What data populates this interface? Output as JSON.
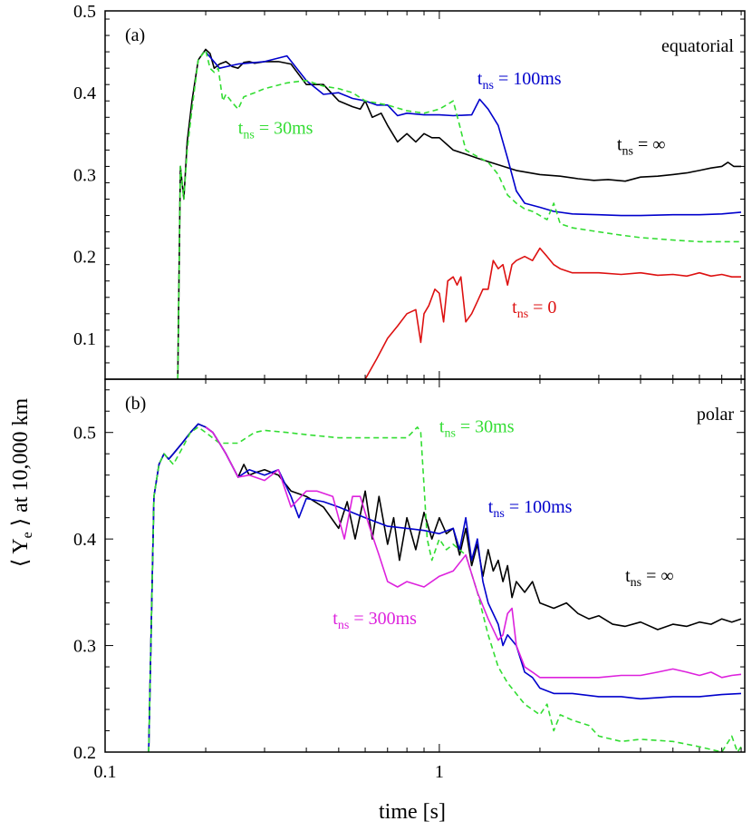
{
  "figure": {
    "ylabel_prefix": "⟨ Y",
    "ylabel_sub": "e",
    "ylabel_suffix": " ⟩  at 10,000 km",
    "xlabel": "time [s]"
  },
  "chart_data": [
    {
      "type": "line",
      "panel_label": "(a)",
      "region_label": "equatorial",
      "xscale": "log",
      "xlim": [
        0.1,
        8.2
      ],
      "ylim": [
        0.05,
        0.5
      ],
      "xticks": [
        {
          "v": 0.1,
          "label": "0.1"
        },
        {
          "v": 1,
          "label": "1"
        }
      ],
      "yticks": [
        {
          "v": 0.1,
          "label": "0.1"
        },
        {
          "v": 0.2,
          "label": "0.2"
        },
        {
          "v": 0.3,
          "label": "0.3"
        },
        {
          "v": 0.4,
          "label": "0.4"
        },
        {
          "v": 0.5,
          "label": "0.5"
        }
      ],
      "series": [
        {
          "id": "a-inf",
          "color": "#000000",
          "dash": "",
          "x": [
            0.165,
            0.168,
            0.172,
            0.176,
            0.182,
            0.19,
            0.2,
            0.206,
            0.212,
            0.22,
            0.23,
            0.24,
            0.25,
            0.26,
            0.27,
            0.28,
            0.3,
            0.33,
            0.36,
            0.4,
            0.45,
            0.5,
            0.55,
            0.58,
            0.6,
            0.63,
            0.67,
            0.7,
            0.75,
            0.8,
            0.85,
            0.9,
            0.95,
            1.0,
            1.1,
            1.2,
            1.3,
            1.5,
            1.7,
            2.0,
            2.3,
            2.6,
            2.9,
            3.2,
            3.6,
            4.0,
            4.5,
            5.0,
            5.5,
            6.0,
            6.5,
            7.0,
            7.3,
            7.6,
            8.0
          ],
          "y": [
            0.05,
            0.31,
            0.27,
            0.34,
            0.39,
            0.44,
            0.453,
            0.448,
            0.43,
            0.435,
            0.438,
            0.432,
            0.43,
            0.437,
            0.438,
            0.436,
            0.438,
            0.438,
            0.435,
            0.41,
            0.41,
            0.39,
            0.383,
            0.38,
            0.39,
            0.37,
            0.375,
            0.36,
            0.34,
            0.35,
            0.34,
            0.35,
            0.345,
            0.345,
            0.33,
            0.325,
            0.32,
            0.312,
            0.305,
            0.3,
            0.298,
            0.295,
            0.293,
            0.294,
            0.292,
            0.297,
            0.298,
            0.3,
            0.302,
            0.305,
            0.308,
            0.31,
            0.315,
            0.31,
            0.31
          ]
        },
        {
          "id": "a-100",
          "color": "#0000cc",
          "dash": "",
          "x": [
            0.2,
            0.22,
            0.25,
            0.3,
            0.35,
            0.4,
            0.45,
            0.5,
            0.55,
            0.6,
            0.65,
            0.7,
            0.75,
            0.8,
            0.9,
            1.0,
            1.1,
            1.25,
            1.32,
            1.4,
            1.5,
            1.6,
            1.7,
            1.8,
            2.0,
            2.2,
            2.5,
            3.0,
            3.5,
            4.0,
            5.0,
            6.0,
            7.0,
            8.0
          ],
          "y": [
            0.45,
            0.43,
            0.435,
            0.438,
            0.445,
            0.415,
            0.398,
            0.4,
            0.393,
            0.39,
            0.385,
            0.385,
            0.372,
            0.375,
            0.373,
            0.373,
            0.372,
            0.373,
            0.392,
            0.38,
            0.36,
            0.32,
            0.28,
            0.265,
            0.26,
            0.255,
            0.252,
            0.251,
            0.25,
            0.25,
            0.251,
            0.251,
            0.252,
            0.254
          ]
        },
        {
          "id": "a-30",
          "color": "#33dd33",
          "dash": "6,4",
          "x": [
            0.165,
            0.168,
            0.172,
            0.176,
            0.182,
            0.19,
            0.2,
            0.206,
            0.212,
            0.218,
            0.225,
            0.23,
            0.24,
            0.25,
            0.26,
            0.28,
            0.3,
            0.35,
            0.4,
            0.45,
            0.5,
            0.55,
            0.6,
            0.7,
            0.8,
            0.9,
            1.0,
            1.05,
            1.1,
            1.15,
            1.2,
            1.3,
            1.4,
            1.5,
            1.6,
            1.7,
            1.8,
            1.9,
            2.0,
            2.1,
            2.2,
            2.3,
            2.5,
            3.0,
            3.5,
            4.0,
            5.0,
            6.0,
            7.0,
            8.0
          ],
          "y": [
            0.05,
            0.31,
            0.27,
            0.33,
            0.38,
            0.44,
            0.452,
            0.43,
            0.425,
            0.43,
            0.39,
            0.398,
            0.388,
            0.38,
            0.395,
            0.4,
            0.405,
            0.412,
            0.415,
            0.408,
            0.405,
            0.4,
            0.39,
            0.385,
            0.378,
            0.375,
            0.38,
            0.385,
            0.39,
            0.36,
            0.33,
            0.322,
            0.315,
            0.3,
            0.275,
            0.265,
            0.258,
            0.255,
            0.25,
            0.245,
            0.265,
            0.24,
            0.235,
            0.23,
            0.226,
            0.223,
            0.22,
            0.218,
            0.218,
            0.218
          ]
        },
        {
          "id": "a-0",
          "color": "#dd1111",
          "dash": "",
          "x": [
            0.6,
            0.65,
            0.7,
            0.75,
            0.8,
            0.85,
            0.88,
            0.9,
            0.93,
            0.97,
            1.0,
            1.03,
            1.06,
            1.1,
            1.13,
            1.16,
            1.2,
            1.25,
            1.3,
            1.35,
            1.4,
            1.45,
            1.5,
            1.55,
            1.6,
            1.65,
            1.7,
            1.8,
            1.9,
            2.0,
            2.1,
            2.2,
            2.3,
            2.5,
            2.8,
            3.0,
            3.5,
            4.0,
            4.5,
            5.0,
            5.5,
            6.0,
            6.5,
            7.0,
            7.5,
            8.0
          ],
          "y": [
            0.05,
            0.075,
            0.1,
            0.115,
            0.13,
            0.135,
            0.095,
            0.13,
            0.14,
            0.16,
            0.155,
            0.12,
            0.17,
            0.175,
            0.165,
            0.175,
            0.12,
            0.13,
            0.145,
            0.16,
            0.16,
            0.195,
            0.185,
            0.19,
            0.165,
            0.19,
            0.195,
            0.2,
            0.195,
            0.21,
            0.2,
            0.19,
            0.185,
            0.18,
            0.18,
            0.18,
            0.178,
            0.18,
            0.177,
            0.178,
            0.176,
            0.18,
            0.176,
            0.178,
            0.175,
            0.175
          ]
        }
      ],
      "annotations": [
        {
          "id": "a-ann-100",
          "color": "#0000cc",
          "main": "t",
          "sub": "ns",
          "rest": " = 100ms",
          "x": 1.3,
          "y": 0.41
        },
        {
          "id": "a-ann-30",
          "color": "#33dd33",
          "main": "t",
          "sub": "ns",
          "rest": " = 30ms",
          "x": 0.25,
          "y": 0.35
        },
        {
          "id": "a-ann-inf",
          "color": "#000000",
          "main": "t",
          "sub": "ns",
          "rest": " =  ∞",
          "x": 3.4,
          "y": 0.33
        },
        {
          "id": "a-ann-0",
          "color": "#dd1111",
          "main": "t",
          "sub": "ns",
          "rest": " = 0",
          "x": 1.65,
          "y": 0.131
        }
      ]
    },
    {
      "type": "line",
      "panel_label": "(b)",
      "region_label": "polar",
      "xscale": "log",
      "xlim": [
        0.1,
        8.2
      ],
      "ylim": [
        0.2,
        0.55
      ],
      "xticks": [
        {
          "v": 0.1,
          "label": "0.1"
        },
        {
          "v": 1,
          "label": "1"
        }
      ],
      "yticks": [
        {
          "v": 0.2,
          "label": "0.2"
        },
        {
          "v": 0.3,
          "label": "0.3"
        },
        {
          "v": 0.4,
          "label": "0.4"
        },
        {
          "v": 0.5,
          "label": "0.5"
        }
      ],
      "series": [
        {
          "id": "b-inf",
          "color": "#000000",
          "dash": "",
          "x": [
            0.135,
            0.14,
            0.145,
            0.15,
            0.155,
            0.16,
            0.17,
            0.18,
            0.19,
            0.2,
            0.21,
            0.22,
            0.23,
            0.25,
            0.26,
            0.27,
            0.28,
            0.3,
            0.33,
            0.36,
            0.4,
            0.45,
            0.5,
            0.53,
            0.56,
            0.6,
            0.63,
            0.66,
            0.7,
            0.73,
            0.76,
            0.8,
            0.85,
            0.9,
            0.95,
            1.0,
            1.05,
            1.1,
            1.15,
            1.2,
            1.25,
            1.3,
            1.35,
            1.4,
            1.45,
            1.5,
            1.55,
            1.6,
            1.65,
            1.7,
            1.8,
            1.9,
            2.0,
            2.2,
            2.4,
            2.6,
            2.8,
            3.0,
            3.3,
            3.6,
            4.0,
            4.5,
            5.0,
            5.5,
            6.0,
            6.5,
            7.0,
            7.5,
            8.0
          ],
          "y": [
            0.2,
            0.44,
            0.47,
            0.48,
            0.475,
            0.48,
            0.49,
            0.5,
            0.508,
            0.505,
            0.5,
            0.49,
            0.48,
            0.458,
            0.47,
            0.46,
            0.462,
            0.465,
            0.46,
            0.445,
            0.44,
            0.43,
            0.41,
            0.435,
            0.4,
            0.445,
            0.4,
            0.44,
            0.395,
            0.42,
            0.38,
            0.42,
            0.39,
            0.425,
            0.4,
            0.42,
            0.405,
            0.41,
            0.385,
            0.41,
            0.375,
            0.395,
            0.365,
            0.39,
            0.37,
            0.38,
            0.36,
            0.375,
            0.345,
            0.36,
            0.35,
            0.36,
            0.34,
            0.335,
            0.34,
            0.33,
            0.325,
            0.328,
            0.32,
            0.318,
            0.322,
            0.315,
            0.32,
            0.318,
            0.322,
            0.32,
            0.325,
            0.322,
            0.325
          ]
        },
        {
          "id": "b-100",
          "color": "#0000cc",
          "dash": "",
          "x": [
            0.135,
            0.14,
            0.145,
            0.15,
            0.155,
            0.16,
            0.17,
            0.18,
            0.19,
            0.2,
            0.21,
            0.22,
            0.23,
            0.25,
            0.27,
            0.3,
            0.33,
            0.36,
            0.38,
            0.4,
            0.45,
            0.5,
            0.6,
            0.7,
            0.8,
            0.9,
            1.0,
            1.1,
            1.15,
            1.2,
            1.25,
            1.3,
            1.35,
            1.4,
            1.5,
            1.55,
            1.6,
            1.65,
            1.7,
            1.8,
            1.9,
            2.0,
            2.2,
            2.5,
            3.0,
            3.5,
            4.0,
            5.0,
            6.0,
            7.0,
            8.0
          ],
          "y": [
            0.2,
            0.44,
            0.47,
            0.48,
            0.475,
            0.48,
            0.49,
            0.5,
            0.508,
            0.505,
            0.5,
            0.49,
            0.48,
            0.458,
            0.465,
            0.46,
            0.465,
            0.44,
            0.42,
            0.438,
            0.435,
            0.43,
            0.42,
            0.412,
            0.41,
            0.408,
            0.405,
            0.41,
            0.39,
            0.42,
            0.38,
            0.4,
            0.36,
            0.34,
            0.32,
            0.3,
            0.31,
            0.305,
            0.3,
            0.275,
            0.27,
            0.26,
            0.255,
            0.255,
            0.252,
            0.252,
            0.25,
            0.252,
            0.252,
            0.254,
            0.255
          ]
        },
        {
          "id": "b-30",
          "color": "#33dd33",
          "dash": "6,4",
          "x": [
            0.135,
            0.14,
            0.145,
            0.15,
            0.155,
            0.16,
            0.17,
            0.18,
            0.19,
            0.2,
            0.22,
            0.25,
            0.28,
            0.3,
            0.35,
            0.4,
            0.5,
            0.6,
            0.7,
            0.8,
            0.86,
            0.88,
            0.9,
            0.92,
            0.95,
            1.0,
            1.05,
            1.1,
            1.2,
            1.3,
            1.4,
            1.5,
            1.6,
            1.8,
            2.0,
            2.1,
            2.2,
            2.3,
            2.5,
            2.8,
            3.0,
            3.5,
            4.0,
            5.0,
            6.0,
            7.0,
            7.5,
            7.8,
            8.0
          ],
          "y": [
            0.2,
            0.44,
            0.47,
            0.48,
            0.475,
            0.47,
            0.485,
            0.5,
            0.505,
            0.5,
            0.49,
            0.49,
            0.5,
            0.502,
            0.5,
            0.498,
            0.495,
            0.495,
            0.495,
            0.495,
            0.505,
            0.5,
            0.45,
            0.4,
            0.38,
            0.4,
            0.39,
            0.395,
            0.385,
            0.35,
            0.31,
            0.28,
            0.265,
            0.245,
            0.235,
            0.245,
            0.22,
            0.235,
            0.23,
            0.225,
            0.215,
            0.21,
            0.212,
            0.21,
            0.205,
            0.2,
            0.215,
            0.2,
            0.205
          ]
        },
        {
          "id": "b-300",
          "color": "#dd22dd",
          "dash": "",
          "x": [
            0.2,
            0.21,
            0.22,
            0.23,
            0.25,
            0.27,
            0.3,
            0.33,
            0.36,
            0.4,
            0.43,
            0.48,
            0.52,
            0.55,
            0.58,
            0.62,
            0.66,
            0.7,
            0.75,
            0.8,
            0.9,
            1.0,
            1.1,
            1.2,
            1.3,
            1.4,
            1.5,
            1.55,
            1.6,
            1.65,
            1.7,
            1.8,
            1.9,
            2.0,
            2.2,
            2.5,
            3.0,
            3.5,
            4.0,
            4.5,
            5.0,
            5.5,
            6.0,
            6.5,
            7.0,
            7.5,
            8.0
          ],
          "y": [
            0.505,
            0.5,
            0.49,
            0.48,
            0.458,
            0.46,
            0.455,
            0.465,
            0.43,
            0.445,
            0.445,
            0.44,
            0.4,
            0.44,
            0.44,
            0.41,
            0.385,
            0.36,
            0.355,
            0.36,
            0.355,
            0.365,
            0.37,
            0.385,
            0.35,
            0.325,
            0.305,
            0.31,
            0.33,
            0.335,
            0.3,
            0.28,
            0.275,
            0.27,
            0.27,
            0.27,
            0.27,
            0.272,
            0.272,
            0.275,
            0.278,
            0.275,
            0.272,
            0.275,
            0.27,
            0.272,
            0.273
          ]
        }
      ],
      "annotations": [
        {
          "id": "b-ann-30",
          "color": "#33dd33",
          "main": "t",
          "sub": "ns",
          "rest": " = 30ms",
          "x": 1.0,
          "y": 0.5
        },
        {
          "id": "b-ann-100",
          "color": "#0000cc",
          "main": "t",
          "sub": "ns",
          "rest": " = 100ms",
          "x": 1.4,
          "y": 0.425
        },
        {
          "id": "b-ann-inf",
          "color": "#000000",
          "main": "t",
          "sub": "ns",
          "rest": " =  ∞",
          "x": 3.6,
          "y": 0.36
        },
        {
          "id": "b-ann-300",
          "color": "#dd22dd",
          "main": "t",
          "sub": "ns",
          "rest": " = 300ms",
          "x": 0.48,
          "y": 0.32
        }
      ]
    }
  ]
}
